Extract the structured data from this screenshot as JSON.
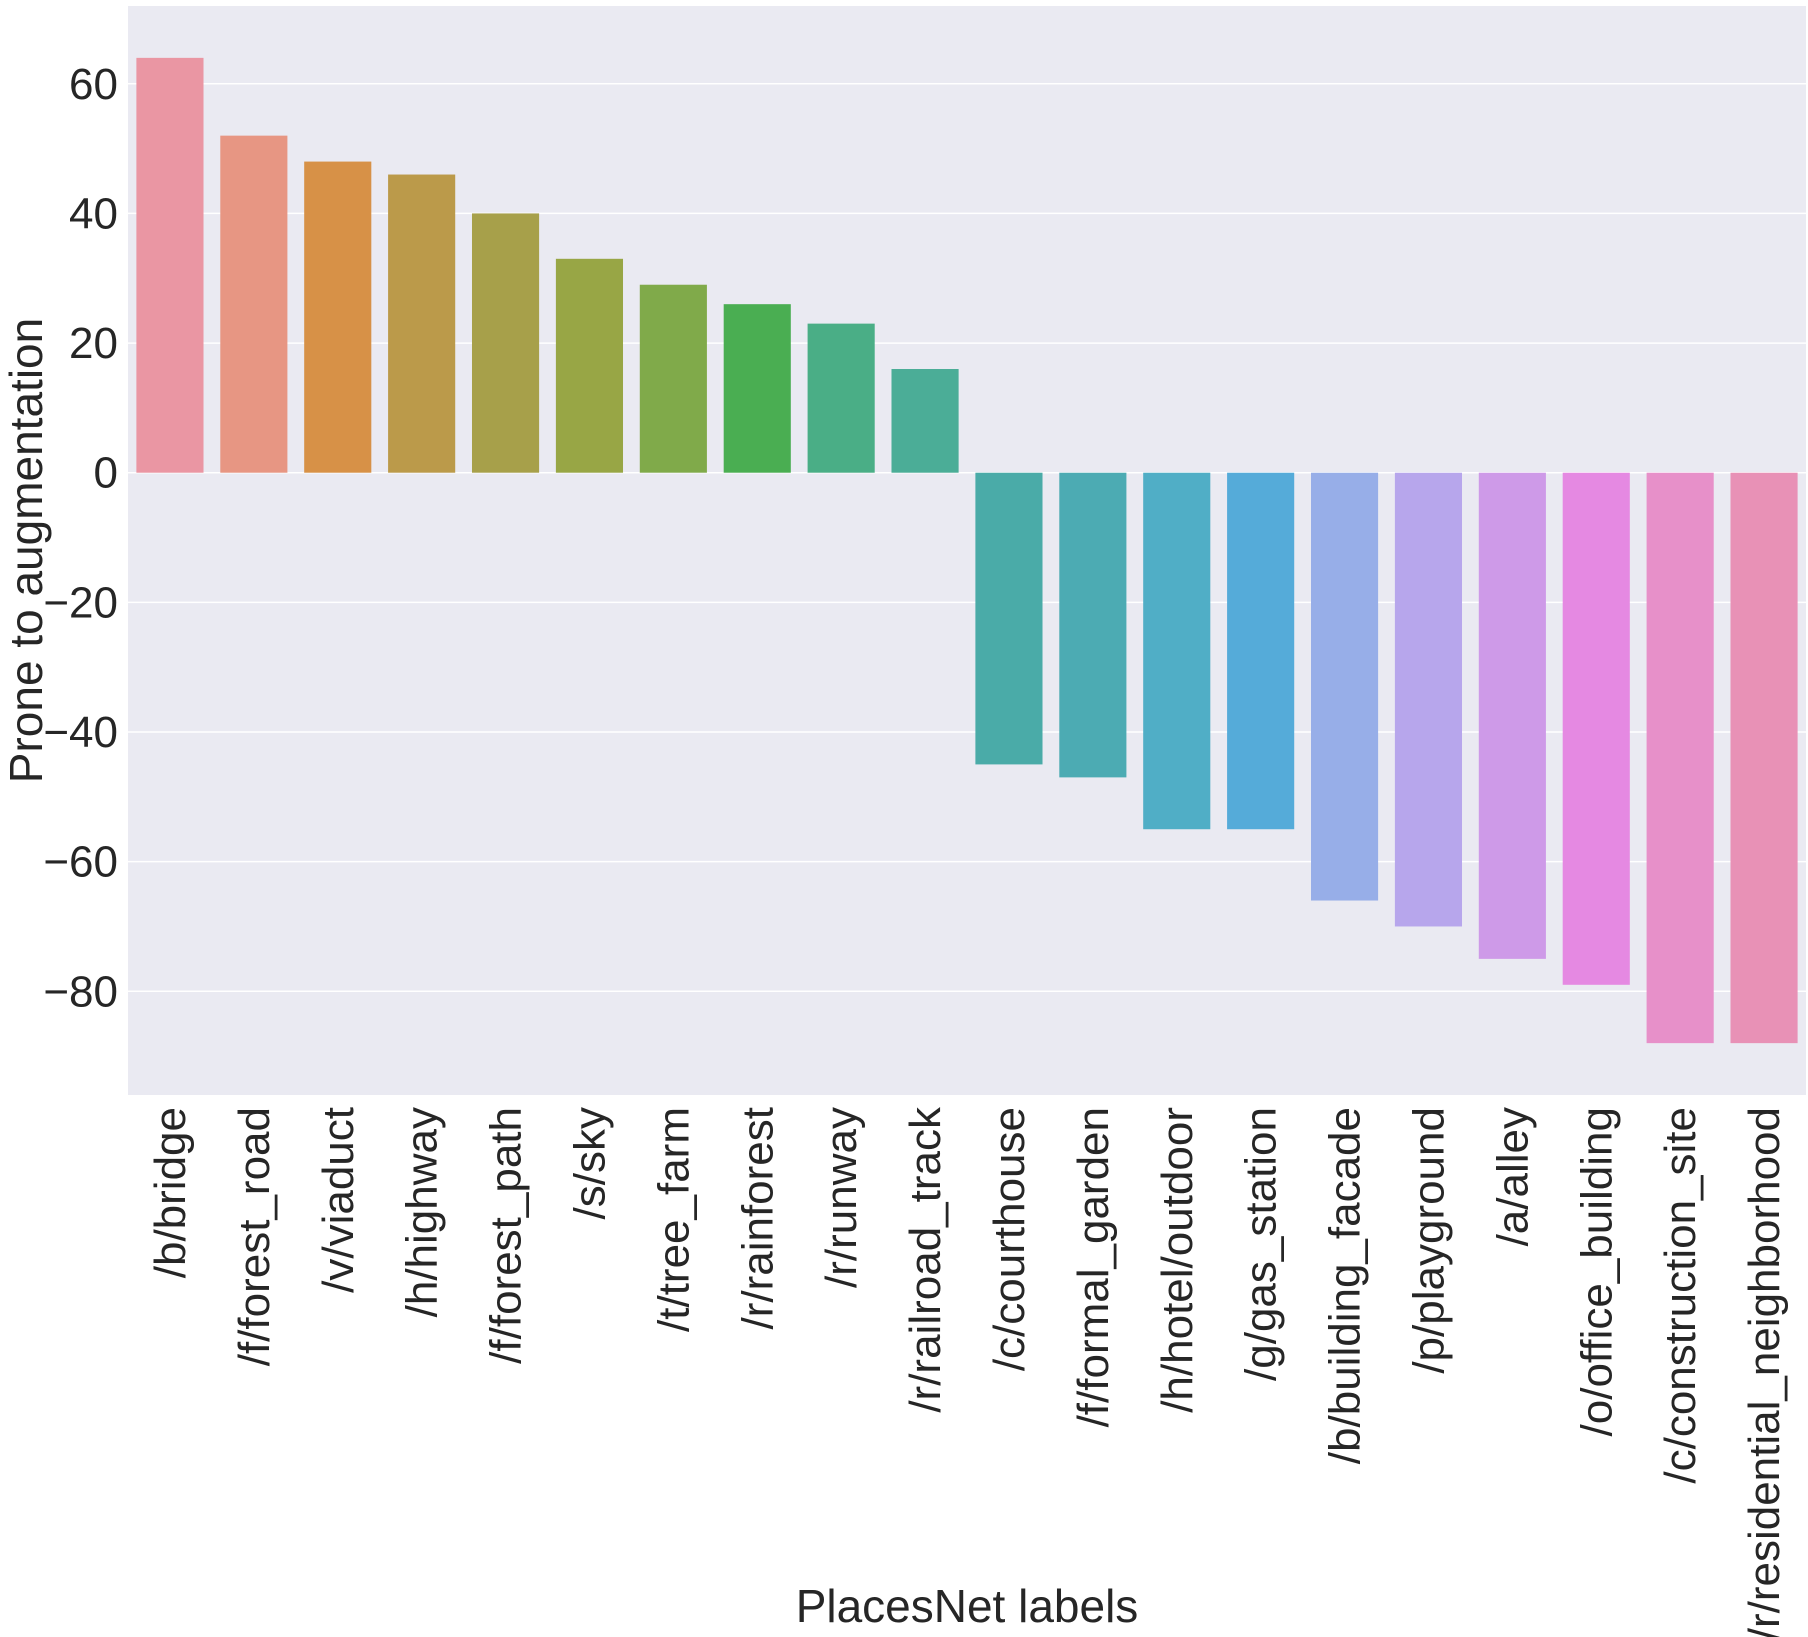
{
  "chart_data": {
    "type": "bar",
    "title": "",
    "xlabel": "PlacesNet labels",
    "ylabel": "Prone to augmentation",
    "ylim": [
      -96,
      72
    ],
    "yticks": [
      60,
      40,
      20,
      0,
      -20,
      -40,
      -60,
      -80
    ],
    "ytick_labels": [
      "60",
      "40",
      "20",
      "0",
      "−20",
      "−40",
      "−60",
      "−80"
    ],
    "grid": true,
    "categories": [
      "/b/bridge",
      "/f/forest_road",
      "/v/viaduct",
      "/h/highway",
      "/f/forest_path",
      "/s/sky",
      "/t/tree_farm",
      "/r/rainforest",
      "/r/runway",
      "/r/railroad_track",
      "/c/courthouse",
      "/f/formal_garden",
      "/h/hotel/outdoor",
      "/g/gas_station",
      "/b/building_facade",
      "/p/playground",
      "/a/alley",
      "/o/office_building",
      "/c/construction_site",
      "/r/residential_neighborhood"
    ],
    "values": [
      64,
      52,
      48,
      46,
      40,
      33,
      29,
      26,
      23,
      16,
      -45,
      -47,
      -55,
      -55,
      -66,
      -70,
      -75,
      -79,
      -88,
      -88
    ],
    "colors": [
      "#ea96a3",
      "#e79683",
      "#d79147",
      "#bb9a4a",
      "#a7a04a",
      "#98a645",
      "#80aa4a",
      "#4aae52",
      "#4aae86",
      "#4bad97",
      "#4aaba8",
      "#4cabb3",
      "#50aec6",
      "#55abd9",
      "#97aee8",
      "#b7a6ec",
      "#ce9ae8",
      "#e589e2",
      "#e790c9",
      "#e891b6"
    ],
    "background": "#eaeaf2",
    "grid_color": "#ffffff"
  }
}
